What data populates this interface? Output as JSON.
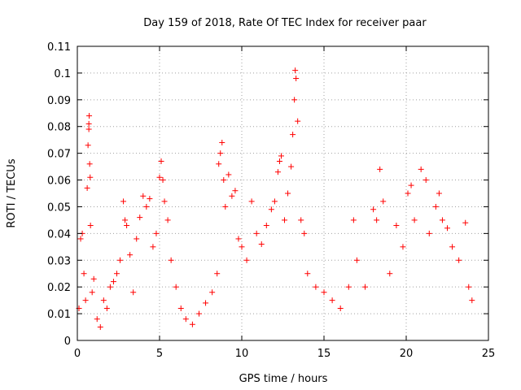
{
  "chart_data": {
    "type": "scatter",
    "title": "Day 159 of 2018, Rate Of TEC Index for receiver paar",
    "xlabel": "GPS time / hours",
    "ylabel": "ROTI / TECUs",
    "xlim": [
      0,
      25
    ],
    "ylim": [
      0,
      0.11
    ],
    "xticks": [
      0,
      5,
      10,
      15,
      20,
      25
    ],
    "xtick_labels": [
      "0",
      "5",
      "10",
      "15",
      "20",
      "25"
    ],
    "yticks": [
      0,
      0.01,
      0.02,
      0.03,
      0.04,
      0.05,
      0.06,
      0.07,
      0.08,
      0.09,
      0.1,
      0.11
    ],
    "ytick_labels": [
      "0",
      "0.01",
      "0.02",
      "0.03",
      "0.04",
      "0.05",
      "0.06",
      "0.07",
      "0.08",
      "0.09",
      "0.1",
      "0.11"
    ],
    "grid": true,
    "marker": "plus",
    "color": "#ff0000",
    "series": [
      {
        "points": [
          [
            0.1,
            0.012
          ],
          [
            0.2,
            0.038
          ],
          [
            0.3,
            0.04
          ],
          [
            0.4,
            0.025
          ],
          [
            0.5,
            0.015
          ],
          [
            0.6,
            0.057
          ],
          [
            0.65,
            0.073
          ],
          [
            0.7,
            0.079
          ],
          [
            0.7,
            0.081
          ],
          [
            0.72,
            0.084
          ],
          [
            0.75,
            0.066
          ],
          [
            0.78,
            0.061
          ],
          [
            0.8,
            0.043
          ],
          [
            0.9,
            0.018
          ],
          [
            1.0,
            0.023
          ],
          [
            1.2,
            0.008
          ],
          [
            1.4,
            0.005
          ],
          [
            1.6,
            0.015
          ],
          [
            1.8,
            0.012
          ],
          [
            2.0,
            0.02
          ],
          [
            2.2,
            0.022
          ],
          [
            2.4,
            0.025
          ],
          [
            2.6,
            0.03
          ],
          [
            2.8,
            0.052
          ],
          [
            2.9,
            0.045
          ],
          [
            3.0,
            0.043
          ],
          [
            3.2,
            0.032
          ],
          [
            3.4,
            0.018
          ],
          [
            3.6,
            0.038
          ],
          [
            3.8,
            0.046
          ],
          [
            4.0,
            0.054
          ],
          [
            4.2,
            0.05
          ],
          [
            4.4,
            0.053
          ],
          [
            4.6,
            0.035
          ],
          [
            4.8,
            0.04
          ],
          [
            5.0,
            0.061
          ],
          [
            5.1,
            0.067
          ],
          [
            5.2,
            0.06
          ],
          [
            5.3,
            0.052
          ],
          [
            5.5,
            0.045
          ],
          [
            5.7,
            0.03
          ],
          [
            6.0,
            0.02
          ],
          [
            6.3,
            0.012
          ],
          [
            6.6,
            0.008
          ],
          [
            7.0,
            0.006
          ],
          [
            7.4,
            0.01
          ],
          [
            7.8,
            0.014
          ],
          [
            8.2,
            0.018
          ],
          [
            8.5,
            0.025
          ],
          [
            8.6,
            0.066
          ],
          [
            8.7,
            0.07
          ],
          [
            8.8,
            0.074
          ],
          [
            8.9,
            0.06
          ],
          [
            9.0,
            0.05
          ],
          [
            9.2,
            0.062
          ],
          [
            9.4,
            0.054
          ],
          [
            9.6,
            0.056
          ],
          [
            9.8,
            0.038
          ],
          [
            10.0,
            0.035
          ],
          [
            10.3,
            0.03
          ],
          [
            10.6,
            0.052
          ],
          [
            10.9,
            0.04
          ],
          [
            11.2,
            0.036
          ],
          [
            11.5,
            0.043
          ],
          [
            11.8,
            0.049
          ],
          [
            12.0,
            0.052
          ],
          [
            12.2,
            0.063
          ],
          [
            12.3,
            0.067
          ],
          [
            12.4,
            0.069
          ],
          [
            12.6,
            0.045
          ],
          [
            12.8,
            0.055
          ],
          [
            13.0,
            0.065
          ],
          [
            13.1,
            0.077
          ],
          [
            13.2,
            0.09
          ],
          [
            13.25,
            0.101
          ],
          [
            13.3,
            0.098
          ],
          [
            13.4,
            0.082
          ],
          [
            13.6,
            0.045
          ],
          [
            13.8,
            0.04
          ],
          [
            14.0,
            0.025
          ],
          [
            14.5,
            0.02
          ],
          [
            15.0,
            0.018
          ],
          [
            15.5,
            0.015
          ],
          [
            16.0,
            0.012
          ],
          [
            16.5,
            0.02
          ],
          [
            16.8,
            0.045
          ],
          [
            17.0,
            0.03
          ],
          [
            17.5,
            0.02
          ],
          [
            18.0,
            0.049
          ],
          [
            18.2,
            0.045
          ],
          [
            18.4,
            0.064
          ],
          [
            18.6,
            0.052
          ],
          [
            19.0,
            0.025
          ],
          [
            19.4,
            0.043
          ],
          [
            19.8,
            0.035
          ],
          [
            20.1,
            0.055
          ],
          [
            20.3,
            0.058
          ],
          [
            20.5,
            0.045
          ],
          [
            20.9,
            0.064
          ],
          [
            21.2,
            0.06
          ],
          [
            21.4,
            0.04
          ],
          [
            21.8,
            0.05
          ],
          [
            22.0,
            0.055
          ],
          [
            22.2,
            0.045
          ],
          [
            22.5,
            0.042
          ],
          [
            22.8,
            0.035
          ],
          [
            23.2,
            0.03
          ],
          [
            23.6,
            0.044
          ],
          [
            23.8,
            0.02
          ],
          [
            24.0,
            0.015
          ]
        ]
      }
    ]
  }
}
